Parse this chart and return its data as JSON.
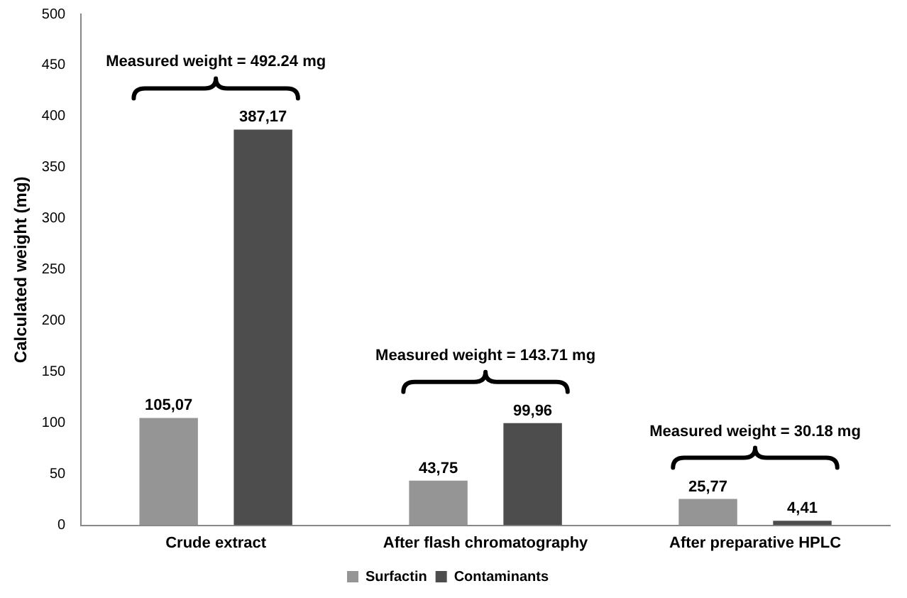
{
  "chart_data": {
    "type": "bar",
    "ylabel": "Calculated weight (mg)",
    "categories": [
      "Crude extract",
      "After flash chromatography",
      "After preparative HPLC"
    ],
    "series": [
      {
        "name": "Surfactin",
        "color": "#959595",
        "values": [
          105.07,
          43.75,
          25.77
        ],
        "value_labels": [
          "105,07",
          "43,75",
          "25,77"
        ]
      },
      {
        "name": "Contaminants",
        "color": "#4d4d4d",
        "values": [
          387.17,
          99.96,
          4.41
        ],
        "value_labels": [
          "387,17",
          "99,96",
          "4,41"
        ]
      }
    ],
    "annotations": [
      "Measured weight = 492.24 mg",
      "Measured weight = 143.71 mg",
      "Measured weight = 30.18 mg"
    ],
    "ylim": [
      0,
      500
    ],
    "yticks": [
      0,
      50,
      100,
      150,
      200,
      250,
      300,
      350,
      400,
      450,
      500
    ],
    "grid": false,
    "legend": "bottom"
  }
}
